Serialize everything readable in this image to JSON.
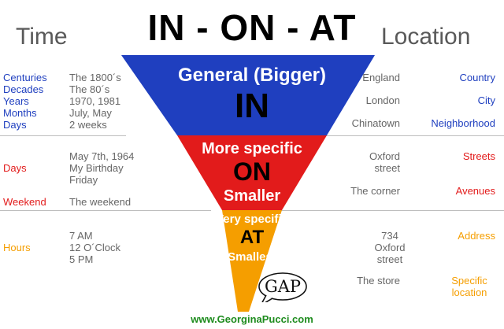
{
  "header": {
    "title": "IN - ON - AT",
    "left_heading": "Time",
    "right_heading": "Location"
  },
  "pyramid": {
    "colors": {
      "in": "#1f3fbf",
      "on": "#e21b1b",
      "at": "#f59e00"
    },
    "in": {
      "caption": "General (Bigger)",
      "word": "IN"
    },
    "on": {
      "caption": "More specific",
      "word": "ON",
      "sub": "Smaller"
    },
    "at": {
      "caption": "Very specific",
      "word": "AT",
      "sub": "Smallest"
    }
  },
  "time": {
    "in": [
      {
        "label": "Centuries",
        "example": "The 1800´s"
      },
      {
        "label": "Decades",
        "example": "The 80´s"
      },
      {
        "label": "Years",
        "example": "1970, 1981"
      },
      {
        "label": "Months",
        "example": "July, May"
      },
      {
        "label": "Days",
        "example": "2 weeks"
      }
    ],
    "on": {
      "days_label": "Days",
      "days_examples": [
        "May 7th, 1964",
        "My Birthday",
        "Friday"
      ],
      "weekend_label": "Weekend",
      "weekend_example": "The weekend"
    },
    "at": {
      "label": "Hours",
      "examples": [
        "7 AM",
        "12 O´Clock",
        "5 PM"
      ]
    }
  },
  "location": {
    "in": [
      {
        "example": "England",
        "label": "Country"
      },
      {
        "example": "London",
        "label": "City"
      },
      {
        "example": "Chinatown",
        "label": "Neighborhood"
      }
    ],
    "on": [
      {
        "example": [
          "Oxford",
          "street"
        ],
        "label": "Streets"
      },
      {
        "example": [
          "The corner"
        ],
        "label": "Avenues"
      }
    ],
    "at": [
      {
        "example": [
          "734",
          "Oxford",
          "street"
        ],
        "label": [
          "Address"
        ]
      },
      {
        "example": [
          "The store"
        ],
        "label": [
          "Specific",
          "location"
        ]
      }
    ]
  },
  "logo": {
    "text": "GAP"
  },
  "footer": {
    "url": "www.GeorginaPucci.com"
  }
}
